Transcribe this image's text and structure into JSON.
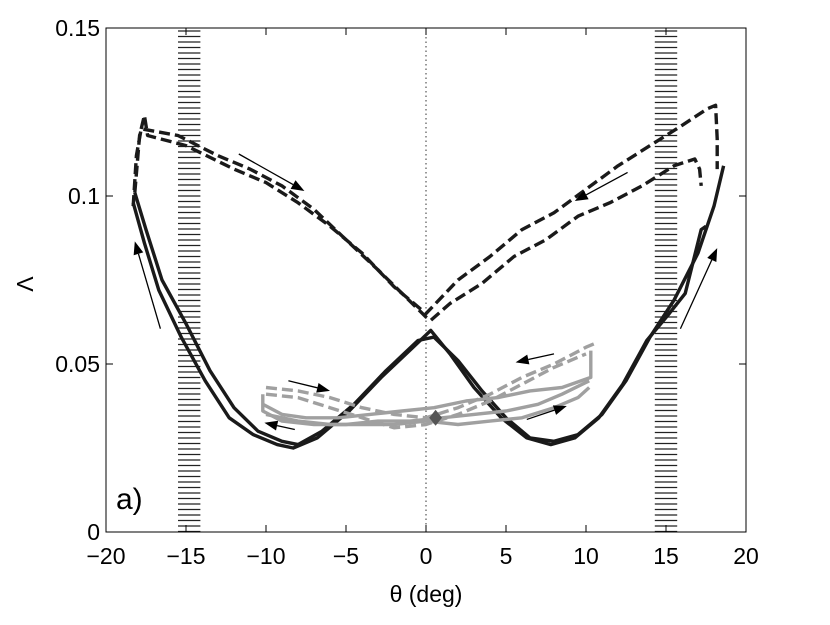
{
  "chart_data": {
    "type": "line",
    "panel_label": "a)",
    "xlabel": "θ (deg)",
    "ylabel": "Λ",
    "xlim": [
      -20,
      20
    ],
    "ylim": [
      0,
      0.15
    ],
    "xticks": [
      -20,
      -15,
      -10,
      -5,
      0,
      5,
      10,
      15,
      20
    ],
    "xtick_labels": [
      "−20",
      "−15",
      "−10",
      "−5",
      "0",
      "5",
      "10",
      "15",
      "20"
    ],
    "yticks": [
      0,
      0.05,
      0.1,
      0.15
    ],
    "ytick_labels": [
      "0",
      "0.05",
      "0.1",
      "0.15"
    ],
    "reference_line_x": 0,
    "hatched_bands": [
      {
        "x0": -15.5,
        "x1": -14.1
      },
      {
        "x0": 14.3,
        "x1": 15.7
      }
    ],
    "marker": {
      "shape": "diamond",
      "x": 0.6,
      "y": 0.034,
      "color": "#555555"
    },
    "colors": {
      "dark": "#1a1a1a",
      "light": "#a0a0a0",
      "arrow": "#000000"
    },
    "series": [
      {
        "name": "dark-solid-1",
        "color": "dark",
        "dashed": false,
        "points": [
          [
            -18.2,
            0.101
          ],
          [
            -17.5,
            0.09
          ],
          [
            -16.5,
            0.075
          ],
          [
            -15,
            0.062
          ],
          [
            -13.5,
            0.048
          ],
          [
            -12,
            0.037
          ],
          [
            -10.5,
            0.03
          ],
          [
            -9,
            0.027
          ],
          [
            -8,
            0.026
          ],
          [
            -6.5,
            0.03
          ],
          [
            -4.5,
            0.038
          ],
          [
            -2.5,
            0.048
          ],
          [
            -0.5,
            0.057
          ],
          [
            0.5,
            0.058
          ],
          [
            2,
            0.051
          ],
          [
            3.5,
            0.042
          ],
          [
            5,
            0.034
          ],
          [
            6.5,
            0.028
          ],
          [
            8,
            0.027
          ],
          [
            9.5,
            0.029
          ],
          [
            11,
            0.035
          ],
          [
            12.5,
            0.045
          ],
          [
            14,
            0.058
          ],
          [
            15.5,
            0.069
          ],
          [
            17,
            0.083
          ],
          [
            18,
            0.097
          ],
          [
            18.6,
            0.109
          ]
        ]
      },
      {
        "name": "dark-solid-2",
        "color": "dark",
        "dashed": false,
        "points": [
          [
            -18.3,
            0.098
          ],
          [
            -17.6,
            0.086
          ],
          [
            -16.7,
            0.072
          ],
          [
            -15.3,
            0.058
          ],
          [
            -13.8,
            0.045
          ],
          [
            -12.3,
            0.034
          ],
          [
            -10.8,
            0.029
          ],
          [
            -9.3,
            0.026
          ],
          [
            -8.3,
            0.025
          ],
          [
            -6.8,
            0.028
          ],
          [
            -4.8,
            0.036
          ],
          [
            -2.8,
            0.046
          ],
          [
            -0.8,
            0.055
          ],
          [
            0.3,
            0.06
          ],
          [
            1.5,
            0.053
          ],
          [
            3,
            0.043
          ],
          [
            4.7,
            0.034
          ],
          [
            6.3,
            0.028
          ],
          [
            7.8,
            0.026
          ],
          [
            9.3,
            0.028
          ],
          [
            10.8,
            0.034
          ],
          [
            12.3,
            0.044
          ],
          [
            13.8,
            0.057
          ],
          [
            15.2,
            0.065
          ],
          [
            16.2,
            0.071
          ],
          [
            17.2,
            0.09
          ],
          [
            17.5,
            0.091
          ]
        ]
      },
      {
        "name": "dark-dashed-1",
        "color": "dark",
        "dashed": true,
        "points": [
          [
            -18.2,
            0.101
          ],
          [
            -17.9,
            0.118
          ],
          [
            -17.6,
            0.124
          ],
          [
            -17.4,
            0.118
          ],
          [
            -15,
            0.115
          ],
          [
            -12,
            0.108
          ],
          [
            -10,
            0.104
          ],
          [
            -8,
            0.098
          ],
          [
            -6,
            0.091
          ],
          [
            -4,
            0.083
          ],
          [
            -2,
            0.073
          ],
          [
            0,
            0.065
          ],
          [
            2,
            0.075
          ],
          [
            4,
            0.082
          ],
          [
            6,
            0.09
          ],
          [
            8,
            0.095
          ],
          [
            10,
            0.102
          ],
          [
            12,
            0.109
          ],
          [
            14,
            0.115
          ],
          [
            16,
            0.121
          ],
          [
            17.6,
            0.126
          ],
          [
            18.1,
            0.127
          ],
          [
            18.2,
            0.117
          ],
          [
            18.2,
            0.108
          ]
        ]
      },
      {
        "name": "dark-dashed-2",
        "color": "dark",
        "dashed": true,
        "points": [
          [
            -18.3,
            0.097
          ],
          [
            -18.1,
            0.112
          ],
          [
            -17.8,
            0.12
          ],
          [
            -15.5,
            0.118
          ],
          [
            -13,
            0.112
          ],
          [
            -11,
            0.108
          ],
          [
            -9,
            0.103
          ],
          [
            -7,
            0.096
          ],
          [
            -5,
            0.087
          ],
          [
            -3,
            0.078
          ],
          [
            -1.5,
            0.071
          ],
          [
            0,
            0.064
          ],
          [
            0.3,
            0.063
          ],
          [
            1.5,
            0.068
          ],
          [
            3.5,
            0.074
          ],
          [
            5.5,
            0.082
          ],
          [
            7.5,
            0.087
          ],
          [
            9.5,
            0.094
          ],
          [
            11.5,
            0.098
          ],
          [
            13.5,
            0.103
          ],
          [
            15.5,
            0.109
          ],
          [
            16.8,
            0.111
          ],
          [
            17.1,
            0.108
          ],
          [
            17.2,
            0.103
          ]
        ]
      },
      {
        "name": "light-solid-1",
        "color": "light",
        "dashed": false,
        "points": [
          [
            -10.2,
            0.038
          ],
          [
            -9,
            0.035
          ],
          [
            -7.5,
            0.034
          ],
          [
            -5.5,
            0.034
          ],
          [
            -3.5,
            0.035
          ],
          [
            -1.5,
            0.036
          ],
          [
            0.5,
            0.037
          ],
          [
            2.5,
            0.039
          ],
          [
            4.5,
            0.04
          ],
          [
            6.5,
            0.042
          ],
          [
            8.5,
            0.043
          ],
          [
            10.3,
            0.046
          ],
          [
            10.3,
            0.054
          ]
        ]
      },
      {
        "name": "light-solid-2",
        "color": "light",
        "dashed": false,
        "points": [
          [
            -10.2,
            0.041
          ],
          [
            -10.2,
            0.036
          ],
          [
            -9,
            0.033
          ],
          [
            -7,
            0.032
          ],
          [
            -5,
            0.032
          ],
          [
            -3,
            0.033
          ],
          [
            -1,
            0.033
          ],
          [
            1,
            0.034
          ],
          [
            3,
            0.035
          ],
          [
            5,
            0.036
          ],
          [
            7,
            0.038
          ],
          [
            8.5,
            0.041
          ],
          [
            10.2,
            0.045
          ]
        ]
      },
      {
        "name": "light-solid-3",
        "color": "light",
        "dashed": false,
        "points": [
          [
            -10,
            0.035
          ],
          [
            -8,
            0.033
          ],
          [
            -6,
            0.032
          ],
          [
            -4,
            0.032
          ],
          [
            -2,
            0.032
          ],
          [
            0,
            0.033
          ],
          [
            2,
            0.032
          ],
          [
            4,
            0.033
          ],
          [
            6,
            0.034
          ],
          [
            8,
            0.037
          ],
          [
            9.5,
            0.04
          ],
          [
            10.2,
            0.043
          ]
        ]
      },
      {
        "name": "light-dashed-1",
        "color": "light",
        "dashed": true,
        "points": [
          [
            -10,
            0.043
          ],
          [
            -8,
            0.042
          ],
          [
            -6,
            0.04
          ],
          [
            -4,
            0.037
          ],
          [
            -2,
            0.035
          ],
          [
            0,
            0.034
          ],
          [
            2,
            0.037
          ],
          [
            4,
            0.041
          ],
          [
            6,
            0.046
          ],
          [
            8,
            0.05
          ],
          [
            10,
            0.055
          ],
          [
            10.5,
            0.056
          ]
        ]
      },
      {
        "name": "light-dashed-2",
        "color": "light",
        "dashed": true,
        "points": [
          [
            -10,
            0.041
          ],
          [
            -8,
            0.04
          ],
          [
            -6,
            0.037
          ],
          [
            -4,
            0.034
          ],
          [
            -2,
            0.031
          ],
          [
            0,
            0.032
          ],
          [
            2,
            0.035
          ],
          [
            4,
            0.039
          ],
          [
            6,
            0.044
          ],
          [
            8,
            0.049
          ],
          [
            10,
            0.053
          ]
        ]
      }
    ],
    "arrows": [
      {
        "name": "arrow-left-upper",
        "from": [
          -16.6,
          0.0605
        ],
        "to": [
          -18.2,
          0.0865
        ]
      },
      {
        "name": "arrow-upper-left-down",
        "from": [
          -11.7,
          0.1125
        ],
        "to": [
          -7.6,
          0.1015
        ]
      },
      {
        "name": "arrow-upper-right-down",
        "from": [
          12.6,
          0.107
        ],
        "to": [
          9.3,
          0.0985
        ]
      },
      {
        "name": "arrow-right-upper",
        "from": [
          15.9,
          0.0605
        ],
        "to": [
          18.2,
          0.0845
        ]
      },
      {
        "name": "arrow-light-left-right",
        "from": [
          -8.6,
          0.045
        ],
        "to": [
          -6.0,
          0.042
        ]
      },
      {
        "name": "arrow-light-left-bottom",
        "from": [
          -8.2,
          0.0305
        ],
        "to": [
          -10.1,
          0.0325
        ]
      },
      {
        "name": "arrow-light-right-top",
        "from": [
          8.0,
          0.053
        ],
        "to": [
          5.6,
          0.0505
        ]
      },
      {
        "name": "arrow-light-right-bottom",
        "from": [
          6.3,
          0.0335
        ],
        "to": [
          8.8,
          0.0375
        ]
      }
    ]
  }
}
